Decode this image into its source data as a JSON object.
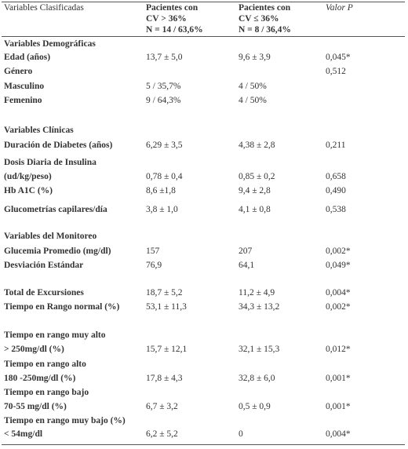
{
  "header": {
    "col1": "Variables Clasificadas",
    "col2_line1": "Pacientes con",
    "col2_line2": "CV > 36%",
    "col2_line3": "N = 14 / 63,6%",
    "col3_line1": "Pacientes con",
    "col3_line2": "CV ≤ 36%",
    "col3_line3": "N = 8 / 36,4%",
    "col4": "Valor P"
  },
  "sections": {
    "demograficas": "Variables Demográficas",
    "clinicas": "Variables Clínicas",
    "monitoreo": "Variables del Monitoreo"
  },
  "rows": [
    {
      "label": "Edad (años)",
      "g1": "13,7 ± 5,0",
      "g2": "9,6 ± 3,9",
      "p": "0,045*"
    },
    {
      "label": "Género",
      "g1": "",
      "g2": "",
      "p": "0,512"
    },
    {
      "label": "Masculino",
      "g1": "5 / 35,7%",
      "g2": "4 / 50%",
      "p": ""
    },
    {
      "label": "Femenino",
      "g1": "9 / 64,3%",
      "g2": "4 / 50%",
      "p": ""
    },
    {
      "label": "Duración de  Diabetes (años)",
      "g1": "6,29 ± 3,5",
      "g2": "4,38 ± 2,8",
      "p": "0,211"
    },
    {
      "label": "Dosis Diaria de Insulina",
      "g1": "",
      "g2": "",
      "p": ""
    },
    {
      "label": "(ud/kg/peso)",
      "g1": "0,78 ± 0,4",
      "g2": "0,85 ± 0,2",
      "p": "0,658"
    },
    {
      "label": "Hb A1C (%)",
      "g1": "8,6 ±1,8",
      "g2": "9,4 ± 2,8",
      "p": "0,490"
    },
    {
      "label": "Glucometrías capilares/día",
      "g1": "3,8 ± 1,0",
      "g2": "4,1 ± 0,8",
      "p": "0,538"
    },
    {
      "label": "Glucemia Promedio  (mg/dl)",
      "g1": "157",
      "g2": "207",
      "p": "0,002*"
    },
    {
      "label": "Desviación Estándar",
      "g1": "76,9",
      "g2": "64,1",
      "p": "0,049*"
    },
    {
      "label": "Total de Excursiones",
      "g1": "18,7 ± 5,2",
      "g2": "11,2 ± 4,9",
      "p": "0,004*"
    },
    {
      "label": "Tiempo en Rango normal (%)",
      "g1": "53,1 ± 11,3",
      "g2": "34,3 ± 13,2",
      "p": "0,002*"
    },
    {
      "label": "Tiempo en rango muy alto",
      "g1": "",
      "g2": "",
      "p": ""
    },
    {
      "label": "> 250mg/dl (%)",
      "g1": "15,7 ± 12,1",
      "g2": "32,1 ± 15,3",
      "p": "0,012*"
    },
    {
      "label": "Tiempo en rango alto",
      "g1": "",
      "g2": "",
      "p": ""
    },
    {
      "label": "180 -250mg/dl (%)",
      "g1": "17,8 ± 4,3",
      "g2": "32,8 ± 6,0",
      "p": "0,001*"
    },
    {
      "label": "Tiempo en rango bajo",
      "g1": "",
      "g2": "",
      "p": ""
    },
    {
      "label": "70-55 mg/dl (%)",
      "g1": "6,7 ± 3,2",
      "g2": "0,5 ± 0,9",
      "p": "0,001*"
    },
    {
      "label": "Tiempo en rango muy bajo (%)",
      "g1": "",
      "g2": "",
      "p": ""
    },
    {
      "label": "< 54mg/dl",
      "g1": "6,2 ± 5,2",
      "g2": "0",
      "p": "0,004*"
    }
  ]
}
